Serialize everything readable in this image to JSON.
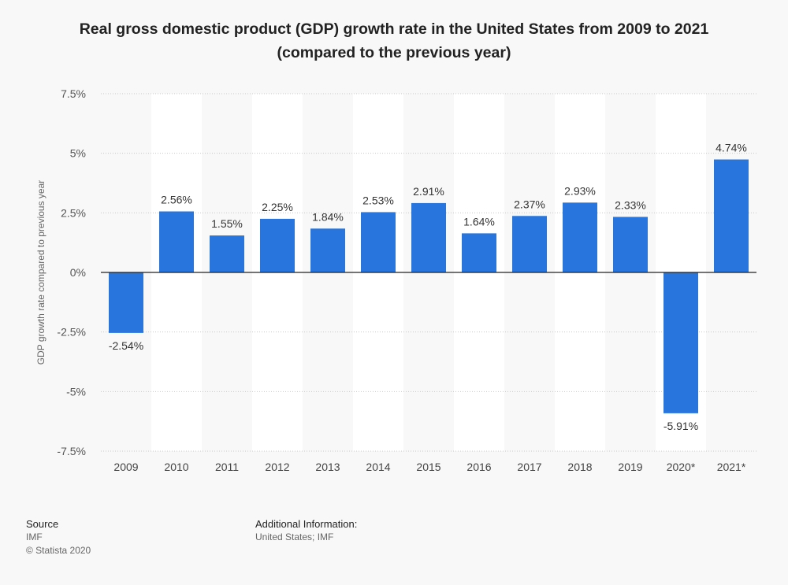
{
  "chart_data": {
    "type": "bar",
    "title_line1": "Real gross domestic product (GDP) growth rate in the United States from 2009 to 2021",
    "title_line2": "(compared to the previous year)",
    "ylabel": "GDP growth rate compared to previous year",
    "xlabel": "",
    "ylim": [
      -7.5,
      7.5
    ],
    "yticks": [
      7.5,
      5,
      2.5,
      0,
      -2.5,
      -5,
      -7.5
    ],
    "ytick_labels": [
      "7.5%",
      "5%",
      "2.5%",
      "0%",
      "-2.5%",
      "-5%",
      "-7.5%"
    ],
    "categories": [
      "2009",
      "2010",
      "2011",
      "2012",
      "2013",
      "2014",
      "2015",
      "2016",
      "2017",
      "2018",
      "2019",
      "2020*",
      "2021*"
    ],
    "values": [
      -2.54,
      2.56,
      1.55,
      2.25,
      1.84,
      2.53,
      2.91,
      1.64,
      2.37,
      2.93,
      2.33,
      -5.91,
      4.74
    ],
    "value_labels": [
      "-2.54%",
      "2.56%",
      "1.55%",
      "2.25%",
      "1.84%",
      "2.53%",
      "2.91%",
      "1.64%",
      "2.37%",
      "2.93%",
      "2.33%",
      "-5.91%",
      "4.74%"
    ],
    "bar_color": "#2876dd",
    "grid": true
  },
  "footer": {
    "source_heading": "Source",
    "source_name": "IMF",
    "copyright": "© Statista 2020",
    "additional_heading": "Additional Information:",
    "additional_text": "United States; IMF"
  }
}
